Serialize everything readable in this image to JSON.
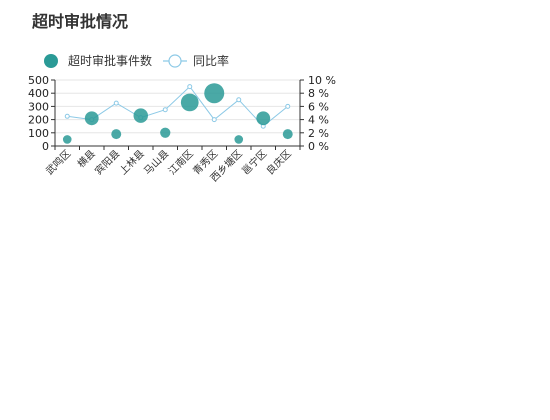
{
  "chart_data": {
    "type": "bar",
    "title": "超时审批情况",
    "categories": [
      "武鸣区",
      "横县",
      "宾阳县",
      "上林县",
      "马山县",
      "江南区",
      "青秀区",
      "西乡塘区",
      "邕宁区",
      "良庆区"
    ],
    "series": [
      {
        "name": "超时审批事件数",
        "kind": "scatter",
        "axis": "left",
        "values": [
          50,
          210,
          90,
          230,
          100,
          330,
          400,
          50,
          210,
          90
        ]
      },
      {
        "name": "同比率",
        "kind": "line",
        "axis": "right",
        "values": [
          4.5,
          4.0,
          6.5,
          4.3,
          5.5,
          9.0,
          4.0,
          7.0,
          3.0,
          6.0
        ]
      }
    ],
    "y_left": {
      "min": 0,
      "max": 500,
      "ticks": [
        0,
        100,
        200,
        300,
        400,
        500
      ]
    },
    "y_right": {
      "min": 0,
      "max": 10,
      "ticks": [
        0,
        2,
        4,
        6,
        8,
        10
      ],
      "unit": " %"
    },
    "legend_position": "top-left",
    "colors": {
      "scatter": "#2a9a96",
      "line": "#8cc9e6",
      "grid": "#e6e6e6"
    }
  }
}
